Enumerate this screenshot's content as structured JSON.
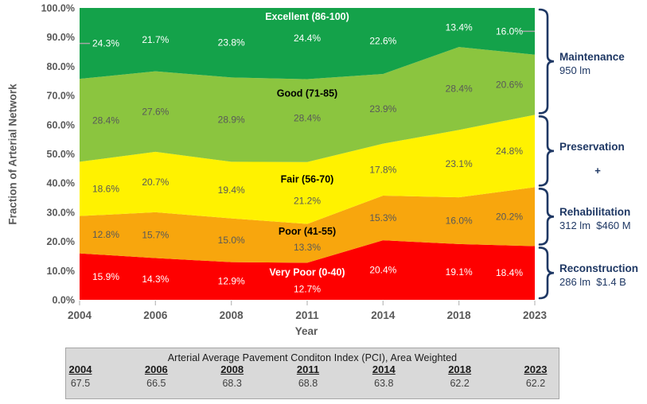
{
  "chart_data": {
    "type": "area",
    "stacked": true,
    "x_label": "Year",
    "y_label": "Fraction of Arterial Network",
    "categories": [
      "2004",
      "2006",
      "2008",
      "2011",
      "2014",
      "2018",
      "2023"
    ],
    "y_ticks": [
      "100.0%",
      "90.0%",
      "80.0%",
      "70.0%",
      "60.0%",
      "50.0%",
      "40.0%",
      "30.0%",
      "20.0%",
      "10.0%",
      "0.0%"
    ],
    "y_range": [
      0,
      100
    ],
    "value_suffix": "%",
    "grid": false,
    "legend": "labels-inside-areas",
    "series": [
      {
        "name": "Very Poor (0-40)",
        "color": "#FE0000",
        "name_color": "#FFFFFF",
        "label_color": "#FFFFFF",
        "values": [
          15.9,
          14.3,
          12.9,
          12.7,
          20.4,
          19.1,
          18.4
        ]
      },
      {
        "name": "Poor (41-55)",
        "color": "#F8A60D",
        "name_color": "#000000",
        "label_color": "#595959",
        "values": [
          12.8,
          15.7,
          15.0,
          13.3,
          15.3,
          16.0,
          20.2
        ]
      },
      {
        "name": "Fair (56-70)",
        "color": "#FFF200",
        "name_color": "#000000",
        "label_color": "#595959",
        "values": [
          18.6,
          20.7,
          19.4,
          21.2,
          17.8,
          23.1,
          24.8
        ]
      },
      {
        "name": "Good (71-85)",
        "color": "#8BC53F",
        "name_color": "#000000",
        "label_color": "#595959",
        "values": [
          28.4,
          27.6,
          28.9,
          28.4,
          23.9,
          28.4,
          20.6
        ]
      },
      {
        "name": "Excellent (86-100)",
        "color": "#14A24A",
        "name_color": "#FFFFFF",
        "label_color": "#FFFFFF",
        "values": [
          24.3,
          21.7,
          23.8,
          24.4,
          22.6,
          13.4,
          16.0
        ]
      }
    ]
  },
  "annotation_color": "#1F3864",
  "annotations": [
    {
      "title": "Maintenance",
      "sub": "950 lm"
    },
    {
      "title": "Preservation",
      "sub": "+"
    },
    {
      "title": "Rehabilitation",
      "sub": "312 lm  $460 M"
    },
    {
      "title": "Reconstruction",
      "sub": "286 lm  $1.4 B"
    }
  ],
  "pci_table": {
    "title": "Arterial Average Pavement Conditon Index (PCI), Area Weighted",
    "years": [
      "2004",
      "2006",
      "2008",
      "2011",
      "2014",
      "2018",
      "2023"
    ],
    "values": [
      "67.5",
      "66.5",
      "68.3",
      "68.8",
      "63.8",
      "62.2",
      "62.2"
    ]
  }
}
